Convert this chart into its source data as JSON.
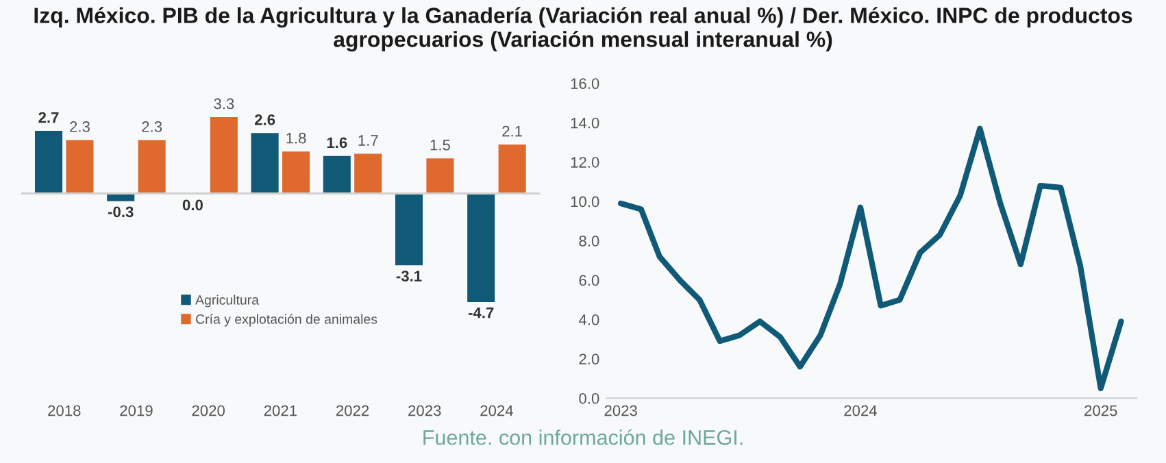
{
  "chart_data": [
    {
      "type": "bar",
      "title": "Izq. México. PIB de la Agricultura y la Ganadería (Variación real anual %) / Der. México. INPC de productos agropecuarios (Variación mensual interanual %)",
      "categories": [
        "2018",
        "2019",
        "2020",
        "2021",
        "2022",
        "2023",
        "2024"
      ],
      "series": [
        {
          "name": "Agricultura",
          "color": "#105a78",
          "values": [
            2.7,
            -0.3,
            0.0,
            2.6,
            1.6,
            -3.1,
            -4.7
          ],
          "value_labels": [
            "2.7",
            "-0.3",
            "0.0",
            "2.6",
            "1.6",
            "-3.1",
            "-4.7"
          ]
        },
        {
          "name": "Cría y explotación de animales",
          "color": "#e06a2e",
          "values": [
            2.3,
            2.3,
            3.3,
            1.8,
            1.7,
            1.5,
            2.1
          ],
          "value_labels": [
            "2.3",
            "2.3",
            "3.3",
            "1.8",
            "1.7",
            "1.5",
            "2.1"
          ]
        }
      ],
      "legend": "center left",
      "tick_labels": "x"
    },
    {
      "type": "line",
      "annotations": [
        "Fuente. con información de INEGI."
      ],
      "x": [
        "2023-01",
        "2023-02",
        "2023-03",
        "2023-04",
        "2023-05",
        "2023-06",
        "2023-07",
        "2023-08",
        "2023-09",
        "2023-10",
        "2023-11",
        "2023-12",
        "2024-01",
        "2024-02",
        "2024-03",
        "2024-04",
        "2024-05",
        "2024-06",
        "2024-07",
        "2024-08",
        "2024-09",
        "2024-10",
        "2024-11",
        "2024-12",
        "2025-01",
        "2025-02"
      ],
      "series": [
        {
          "color": "#105a78",
          "values": [
            9.9,
            9.6,
            7.2,
            6.0,
            5.0,
            2.9,
            3.2,
            3.9,
            3.1,
            1.6,
            3.2,
            5.8,
            9.7,
            4.7,
            5.0,
            7.4,
            8.3,
            10.3,
            13.7,
            9.9,
            6.8,
            10.8,
            10.7,
            6.7,
            0.5,
            3.9
          ]
        }
      ],
      "xlim": [
        "2022-12-10",
        "2025-02-25"
      ],
      "xticks": [
        "2023",
        "2024",
        "2025"
      ],
      "ylim": [
        0,
        16
      ],
      "yticks": [
        {
          "value": 0,
          "label": "0.0"
        },
        {
          "value": 2,
          "label": "2.0"
        },
        {
          "value": 4,
          "label": "4.0"
        },
        {
          "value": 6,
          "label": "6.0"
        },
        {
          "value": 8,
          "label": "8.0"
        },
        {
          "value": 10,
          "label": "10.0"
        },
        {
          "value": 12,
          "label": "12.0"
        },
        {
          "value": 14,
          "label": "14.0"
        },
        {
          "value": 16,
          "label": "16.0"
        }
      ],
      "line_style": "solid",
      "marker": "none",
      "grid": false
    }
  ]
}
